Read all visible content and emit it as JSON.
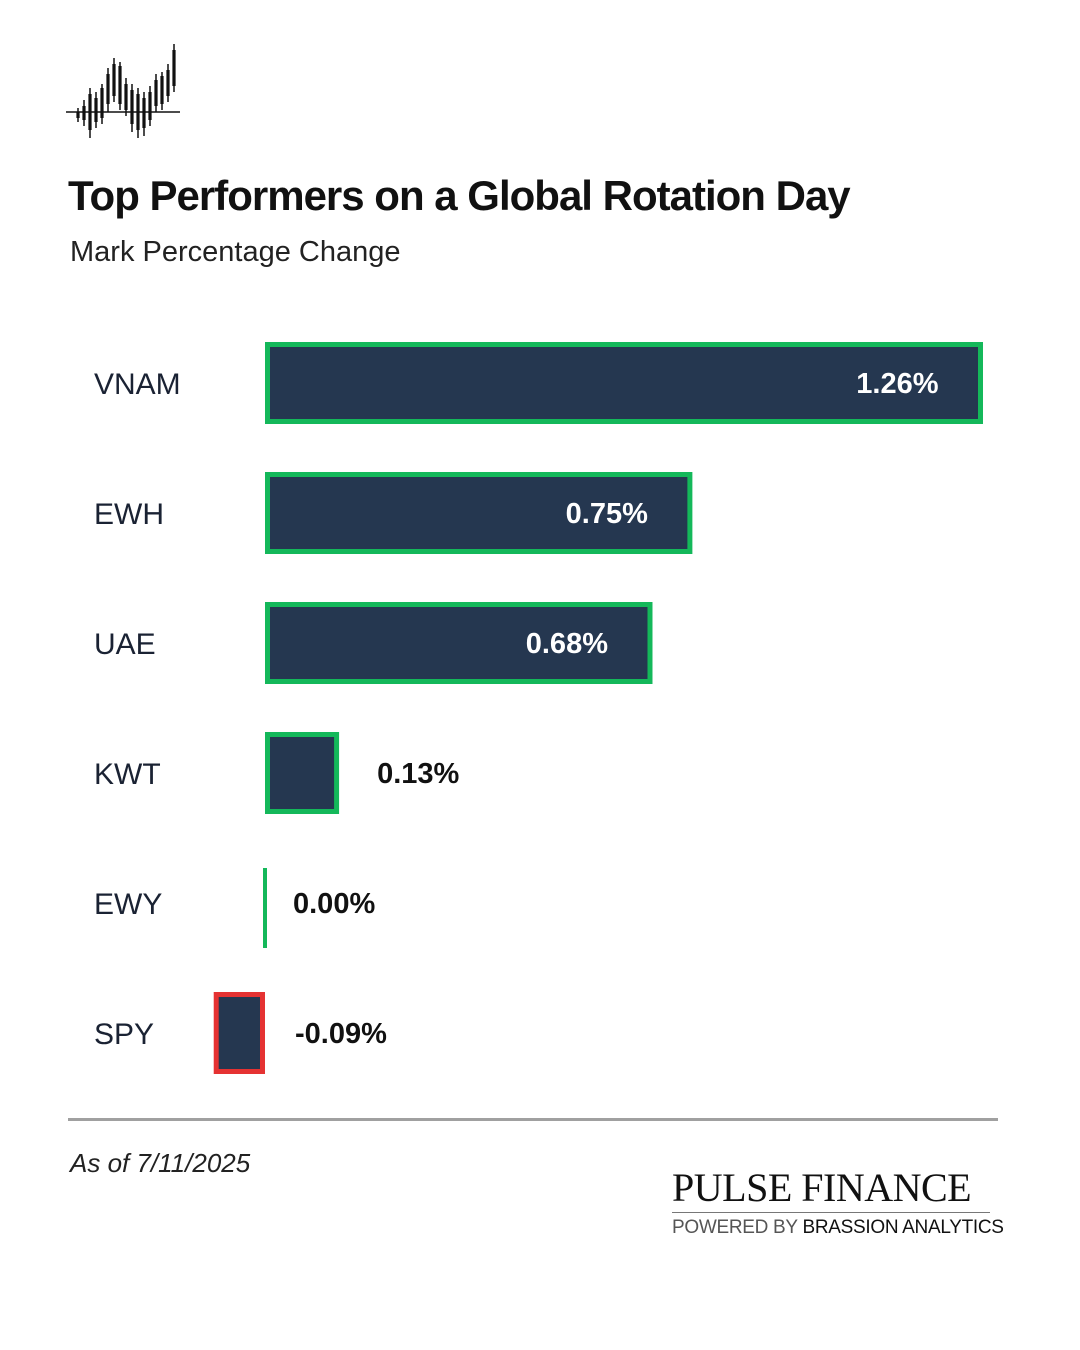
{
  "header": {
    "title": "Top Performers on a Global Rotation Day",
    "subtitle": "Mark Percentage Change",
    "logo_icon": "candlestick-chart-icon"
  },
  "chart_data": {
    "type": "bar",
    "orientation": "horizontal",
    "title": "Top Performers on a Global Rotation Day",
    "subtitle": "Mark Percentage Change",
    "categories": [
      "VNAM",
      "EWH",
      "UAE",
      "KWT",
      "EWY",
      "SPY"
    ],
    "values": [
      1.26,
      0.75,
      0.68,
      0.13,
      0.0,
      -0.09
    ],
    "labels": [
      "1.26%",
      "0.75%",
      "0.68%",
      "0.13%",
      "0.00%",
      "-0.09%"
    ],
    "xlim": [
      -0.09,
      1.26
    ],
    "grid": false,
    "legend": "none",
    "colors": {
      "bar_fill": "#253750",
      "positive_border": "#14b85a",
      "negative_border": "#e53232",
      "inside_label": "#ffffff",
      "outside_label": "#111111",
      "category_label": "#1a2233"
    }
  },
  "footer": {
    "as_of": "As of 7/11/2025",
    "brand_name": "PULSE FINANCE",
    "brand_powered": "POWERED BY",
    "brand_company": "BRASSION ANALYTICS"
  }
}
